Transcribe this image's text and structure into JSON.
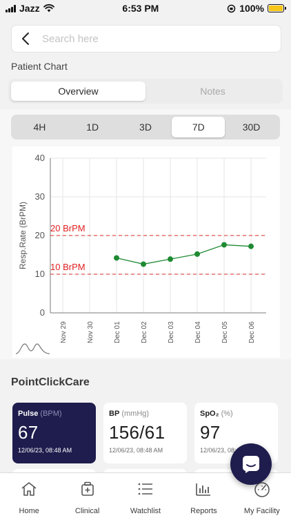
{
  "status_bar": {
    "carrier": "Jazz",
    "time": "6:53 PM",
    "battery_percent": "100%"
  },
  "search": {
    "placeholder": "Search here"
  },
  "section_title": "Patient Chart",
  "view_tabs": [
    {
      "label": "Overview",
      "active": true
    },
    {
      "label": "Notes",
      "active": false
    }
  ],
  "time_ranges": [
    {
      "label": "4H",
      "active": false
    },
    {
      "label": "1D",
      "active": false
    },
    {
      "label": "3D",
      "active": false
    },
    {
      "label": "7D",
      "active": true
    },
    {
      "label": "30D",
      "active": false
    }
  ],
  "chart_data": {
    "type": "line",
    "ylabel": "Resp.Rate (BrPM)",
    "ylim": [
      0,
      40
    ],
    "yticks": [
      "0",
      "10",
      "20",
      "30",
      "40"
    ],
    "categories": [
      "Nov 29",
      "Nov 30",
      "Dec 01",
      "Dec 02",
      "Dec 03",
      "Dec 04",
      "Dec 05",
      "Dec 06"
    ],
    "series": [
      {
        "values": [
          null,
          null,
          14.2,
          12.6,
          13.9,
          15.2,
          17.6,
          17.2
        ],
        "color": "#1e8a32"
      }
    ],
    "thresholds": [
      {
        "value": 20,
        "label": "20 BrPM",
        "color": "#e02020"
      },
      {
        "value": 10,
        "label": "10 BrPM",
        "color": "#e02020"
      }
    ],
    "grid": true
  },
  "pcc_title": "PointClickCare",
  "vitals": [
    {
      "name": "Pulse",
      "unit": "(BPM)",
      "value": "67",
      "time": "12/06/23, 08:48 AM",
      "active": true
    },
    {
      "name": "BP",
      "unit": "(mmHg)",
      "value": "156/61",
      "time": "12/06/23, 08:48 AM",
      "active": false
    },
    {
      "name": "SpO₂",
      "unit": "(%)",
      "value": "97",
      "time": "12/06/23, 08:48 AM",
      "active": false
    }
  ],
  "tabs": [
    {
      "label": "Home",
      "icon": "home-icon"
    },
    {
      "label": "Clinical",
      "icon": "clinical-icon"
    },
    {
      "label": "Watchlist",
      "icon": "list-icon"
    },
    {
      "label": "Reports",
      "icon": "bar-chart-icon"
    },
    {
      "label": "My Facility",
      "icon": "gauge-icon"
    }
  ]
}
